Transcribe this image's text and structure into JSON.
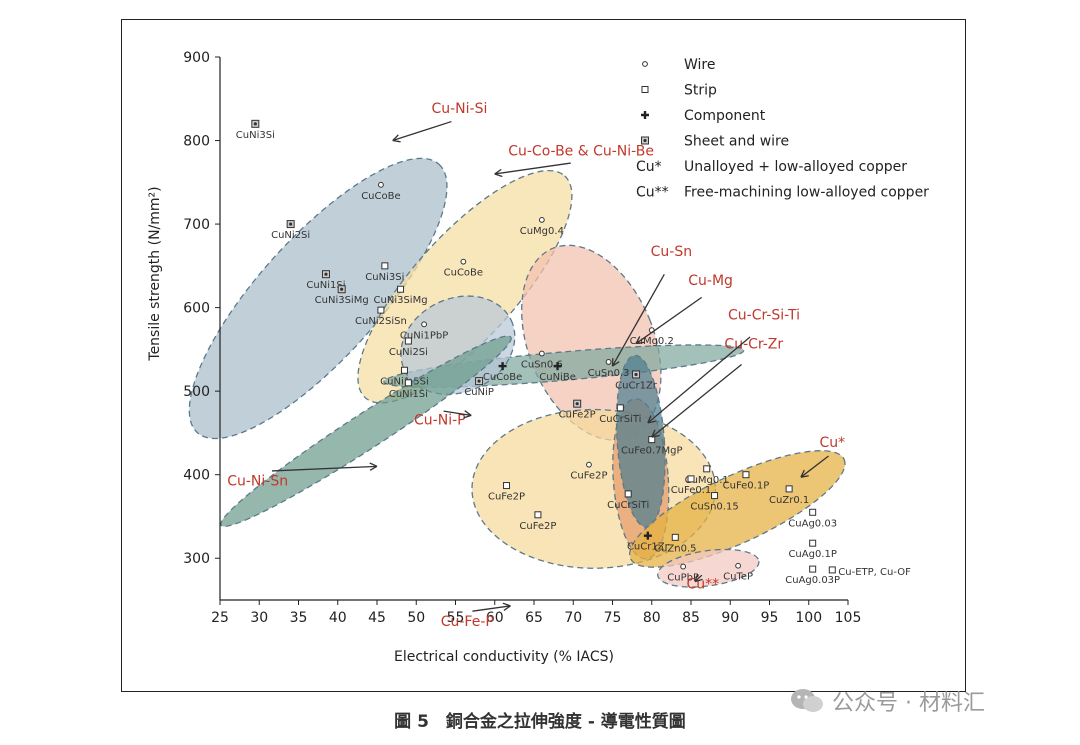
{
  "caption": "圖 5　銅合金之拉伸強度 - 導電性質圖",
  "watermark": "公众号 · 材料汇",
  "chart_data": {
    "type": "scatter",
    "xlabel": "Electrical conductivity (% IACS)",
    "ylabel": "Tensile strength (N/mm²)",
    "xlim": [
      25,
      105
    ],
    "ylim": [
      250,
      900
    ],
    "xticks": [
      25,
      30,
      35,
      40,
      45,
      50,
      55,
      60,
      65,
      70,
      75,
      80,
      85,
      90,
      95,
      100,
      105
    ],
    "yticks": [
      300,
      400,
      500,
      600,
      700,
      800,
      900
    ],
    "grid": false,
    "legend_position": "top-right",
    "legend": [
      {
        "symbol": "circle",
        "label": "Wire"
      },
      {
        "symbol": "square",
        "label": "Strip"
      },
      {
        "symbol": "plus",
        "label": "Component"
      },
      {
        "symbol": "square-dot",
        "label": "Sheet and wire"
      },
      {
        "symbol": "Cu*",
        "label": "Unalloyed + low-alloyed copper"
      },
      {
        "symbol": "Cu**",
        "label": "Free-machining low-alloyed copper"
      }
    ],
    "accent_color": "#c0392b",
    "regions": [
      {
        "name": "Cu-Ni-Si",
        "color": "#a9bccb",
        "cx": 37.5,
        "cy": 611,
        "rx": 23,
        "ry": 72,
        "rot": -48
      },
      {
        "name": "Cu-Co-Be & Cu-Ni-Be",
        "color": "#f7dea2",
        "cx": 56.2,
        "cy": 625,
        "rx": 19,
        "ry": 62,
        "rot": -48
      },
      {
        "name": "Cu-Mg",
        "color": "#f3c1ae",
        "cx": 72.3,
        "cy": 558,
        "rx": 8,
        "ry": 122,
        "rot": -22
      },
      {
        "name": "Cu-Sn",
        "color": "#7fa89e",
        "cx": 68.8,
        "cy": 530,
        "rx": 23,
        "ry": 17,
        "rot": -5
      },
      {
        "name": "Cu-Ni-P",
        "color": "#b9c8d8",
        "cx": 55.3,
        "cy": 555,
        "rx": 7.5,
        "ry": 56,
        "rot": -25
      },
      {
        "name": "Cu-Ni-Sn",
        "color": "#6e9c8c",
        "cx": 43.6,
        "cy": 452,
        "rx": 22,
        "ry": 21,
        "rot": -33
      },
      {
        "name": "Cu-Fe-P",
        "color": "#f5d99b",
        "cx": 72.6,
        "cy": 383,
        "rx": 15.5,
        "ry": 95,
        "rot": 0
      },
      {
        "name": "Cu-Cr-Si-Ti",
        "color": "#e89a6a",
        "cx": 78.6,
        "cy": 395,
        "rx": 3.5,
        "ry": 96,
        "rot": -4
      },
      {
        "name": "Cu-Cr-Zr",
        "color": "#4e7e92",
        "cx": 78.6,
        "cy": 440,
        "rx": 3,
        "ry": 103,
        "rot": -4
      },
      {
        "name": "Cu*",
        "color": "#e4b040",
        "cx": 90.9,
        "cy": 359,
        "rx": 15,
        "ry": 40,
        "rot": -25
      },
      {
        "name": "Cu**",
        "color": "#f4c8c1",
        "cx": 87.2,
        "cy": 288,
        "rx": 6.5,
        "ry": 21,
        "rot": -8
      }
    ],
    "region_labels": [
      {
        "text": "Cu-Ni-Si",
        "x": 55.5,
        "y": 833
      },
      {
        "text": "Cu-Co-Be & Cu-Ni-Be",
        "x": 71,
        "y": 782
      },
      {
        "text": "Cu-Sn",
        "x": 82.5,
        "y": 662
      },
      {
        "text": "Cu-Mg",
        "x": 87.5,
        "y": 627
      },
      {
        "text": "Cu-Cr-Si-Ti",
        "x": 94.3,
        "y": 586
      },
      {
        "text": "Cu-Cr-Zr",
        "x": 93,
        "y": 551
      },
      {
        "text": "Cu*",
        "x": 103,
        "y": 433
      },
      {
        "text": "Cu**",
        "x": 86.5,
        "y": 264
      },
      {
        "text": "Cu-Ni-P",
        "x": 53,
        "y": 460
      },
      {
        "text": "Cu-Ni-Sn",
        "x": 29.8,
        "y": 387
      },
      {
        "text": "Cu-Fe-P",
        "x": 56.5,
        "y": 219
      }
    ],
    "points": [
      {
        "label": "CuNi3Si",
        "x": 29.5,
        "y": 820,
        "marker": "square-dot"
      },
      {
        "label": "CuNi2Si",
        "x": 34,
        "y": 700,
        "marker": "square-dot"
      },
      {
        "label": "CuNi1Si",
        "x": 38.5,
        "y": 640,
        "marker": "square-dot"
      },
      {
        "label": "CuNi3SiMg",
        "x": 40.5,
        "y": 622,
        "marker": "square-dot"
      },
      {
        "label": "CuNi3Si",
        "x": 46,
        "y": 650,
        "marker": "square"
      },
      {
        "label": "CuNi3SiMg",
        "x": 48,
        "y": 622,
        "marker": "square"
      },
      {
        "label": "CuNi2SiSn",
        "x": 45.5,
        "y": 597,
        "marker": "square"
      },
      {
        "label": "CuNi2Si",
        "x": 49,
        "y": 560,
        "marker": "square"
      },
      {
        "label": "CuNi1.5Si",
        "x": 48.5,
        "y": 525,
        "marker": "square"
      },
      {
        "label": "CuNi1Si",
        "x": 49,
        "y": 510,
        "marker": "square"
      },
      {
        "label": "CuNi1PbP",
        "x": 51,
        "y": 580,
        "marker": "circle"
      },
      {
        "label": "CuNiP",
        "x": 58,
        "y": 512,
        "marker": "square-dot"
      },
      {
        "label": "CuCoBe",
        "x": 45.5,
        "y": 747,
        "marker": "circle"
      },
      {
        "label": "CuCoBe",
        "x": 56,
        "y": 655,
        "marker": "circle"
      },
      {
        "label": "CuSn0.6",
        "x": 66,
        "y": 545,
        "marker": "circle"
      },
      {
        "label": "CuCoBe",
        "x": 61,
        "y": 530,
        "marker": "plus"
      },
      {
        "label": "CuNiBe",
        "x": 68,
        "y": 530,
        "marker": "plus"
      },
      {
        "label": "CuSn0.3",
        "x": 74.5,
        "y": 535,
        "marker": "circle"
      },
      {
        "label": "CuMg0.4",
        "x": 66,
        "y": 705,
        "marker": "circle"
      },
      {
        "label": "CuMg0.2",
        "x": 80,
        "y": 573,
        "marker": "circle"
      },
      {
        "label": "CuCr1Zr",
        "x": 78,
        "y": 520,
        "marker": "square-dot"
      },
      {
        "label": "CuFe2P",
        "x": 70.5,
        "y": 485,
        "marker": "square-dot"
      },
      {
        "label": "CuCrSiTi",
        "x": 76,
        "y": 480,
        "marker": "square"
      },
      {
        "label": "CuFe2P",
        "x": 72,
        "y": 412,
        "marker": "circle"
      },
      {
        "label": "CuFe2P",
        "x": 61.5,
        "y": 387,
        "marker": "square"
      },
      {
        "label": "CuFe2P",
        "x": 65.5,
        "y": 352,
        "marker": "square"
      },
      {
        "label": "CuFe0.7MgP",
        "x": 80,
        "y": 442,
        "marker": "square"
      },
      {
        "label": "CuCrSiTi",
        "x": 77,
        "y": 377,
        "marker": "square"
      },
      {
        "label": "CuCr1Zr",
        "x": 79.5,
        "y": 327,
        "marker": "plus"
      },
      {
        "label": "CuZn0.5",
        "x": 83,
        "y": 325,
        "marker": "square"
      },
      {
        "label": "CuPbP",
        "x": 84,
        "y": 290,
        "marker": "circle"
      },
      {
        "label": "CuTeP",
        "x": 91,
        "y": 291,
        "marker": "circle"
      },
      {
        "label": "CuMg0.1",
        "x": 87,
        "y": 407,
        "marker": "square"
      },
      {
        "label": "CuFe0.1",
        "x": 85,
        "y": 395,
        "marker": "square"
      },
      {
        "label": "CuFe0.1P",
        "x": 92,
        "y": 400,
        "marker": "square"
      },
      {
        "label": "CuSn0.15",
        "x": 88,
        "y": 375,
        "marker": "square"
      },
      {
        "label": "CuZr0.1",
        "x": 97.5,
        "y": 383,
        "marker": "square"
      },
      {
        "label": "CuAg0.03",
        "x": 100.5,
        "y": 355,
        "marker": "square"
      },
      {
        "label": "CuAg0.1P",
        "x": 100.5,
        "y": 318,
        "marker": "square"
      },
      {
        "label": "CuAg0.03P",
        "x": 100.5,
        "y": 287,
        "marker": "square"
      },
      {
        "label": "Cu-ETP, Cu-OF",
        "x": 103,
        "y": 286,
        "marker": "square"
      }
    ]
  }
}
